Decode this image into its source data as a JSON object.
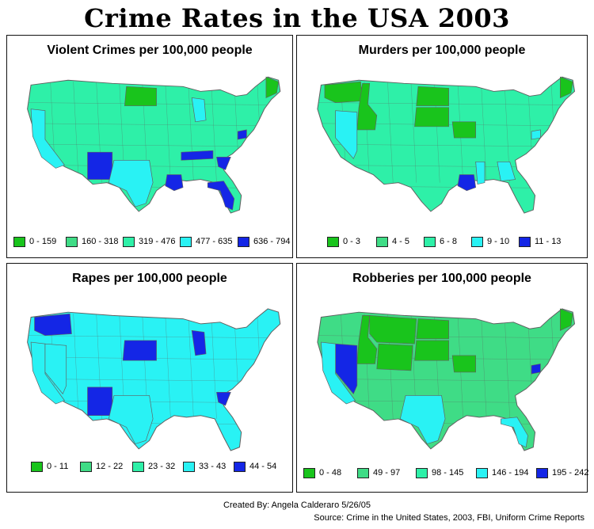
{
  "title": "Crime Rates in the USA 2003",
  "colors": {
    "c1": "#19c41c",
    "c2": "#3fdc86",
    "c3": "#2ef0a8",
    "c4": "#29f2f4",
    "c5": "#1426e6",
    "outline": "#606060"
  },
  "panels": [
    {
      "title": "Violent Crimes per 100,000 people",
      "legend": [
        "0 - 159",
        "160 - 318",
        "319 - 476",
        "477 - 635",
        "636 - 794"
      ],
      "highlights": [
        {
          "region": "north-dakota",
          "color": "c1"
        },
        {
          "region": "maine",
          "color": "c1"
        },
        {
          "region": "new-mexico",
          "color": "c5"
        },
        {
          "region": "tennessee",
          "color": "c5"
        },
        {
          "region": "south-carolina",
          "color": "c5"
        },
        {
          "region": "louisiana",
          "color": "c5"
        },
        {
          "region": "florida",
          "color": "c5"
        },
        {
          "region": "maryland",
          "color": "c5"
        },
        {
          "region": "california",
          "color": "c4"
        },
        {
          "region": "texas",
          "color": "c4"
        },
        {
          "region": "michigan",
          "color": "c4"
        }
      ],
      "base": "c3"
    },
    {
      "title": "Murders per 100,000 people",
      "legend": [
        "0 - 3",
        "4 - 5",
        "6 - 8",
        "9 - 10",
        "11 - 13"
      ],
      "highlights": [
        {
          "region": "washington",
          "color": "c1"
        },
        {
          "region": "idaho",
          "color": "c1"
        },
        {
          "region": "north-dakota",
          "color": "c1"
        },
        {
          "region": "south-dakota",
          "color": "c1"
        },
        {
          "region": "iowa",
          "color": "c1"
        },
        {
          "region": "maine",
          "color": "c1"
        },
        {
          "region": "louisiana",
          "color": "c5"
        },
        {
          "region": "nevada",
          "color": "c4"
        },
        {
          "region": "mississippi",
          "color": "c4"
        },
        {
          "region": "georgia",
          "color": "c4"
        },
        {
          "region": "maryland",
          "color": "c4"
        }
      ],
      "base": "c3"
    },
    {
      "title": "Rapes per 100,000 people",
      "legend": [
        "0 - 11",
        "12 - 22",
        "23 - 32",
        "33 - 43",
        "44 - 54"
      ],
      "highlights": [
        {
          "region": "washington",
          "color": "c5"
        },
        {
          "region": "south-dakota",
          "color": "c5"
        },
        {
          "region": "michigan",
          "color": "c5"
        },
        {
          "region": "new-mexico",
          "color": "c5"
        },
        {
          "region": "south-carolina",
          "color": "c5"
        },
        {
          "region": "california",
          "color": "c4"
        },
        {
          "region": "texas",
          "color": "c4"
        },
        {
          "region": "nevada",
          "color": "c4"
        }
      ],
      "base": "c4"
    },
    {
      "title": "Robberies per 100,000 people",
      "legend": [
        "0 - 48",
        "49 - 97",
        "98 - 145",
        "146 - 194",
        "195 - 242"
      ],
      "highlights": [
        {
          "region": "montana",
          "color": "c1"
        },
        {
          "region": "wyoming",
          "color": "c1"
        },
        {
          "region": "north-dakota",
          "color": "c1"
        },
        {
          "region": "south-dakota",
          "color": "c1"
        },
        {
          "region": "iowa",
          "color": "c1"
        },
        {
          "region": "maine",
          "color": "c1"
        },
        {
          "region": "idaho",
          "color": "c1"
        },
        {
          "region": "nevada",
          "color": "c5"
        },
        {
          "region": "maryland",
          "color": "c5"
        },
        {
          "region": "california",
          "color": "c4"
        },
        {
          "region": "texas",
          "color": "c4"
        },
        {
          "region": "florida",
          "color": "c4"
        }
      ],
      "base": "c2"
    }
  ],
  "credit": "Created By: Angela Calderaro 5/26/05",
  "source": "Source: Crime in the United States, 2003, FBI, Uniform Crime Reports"
}
